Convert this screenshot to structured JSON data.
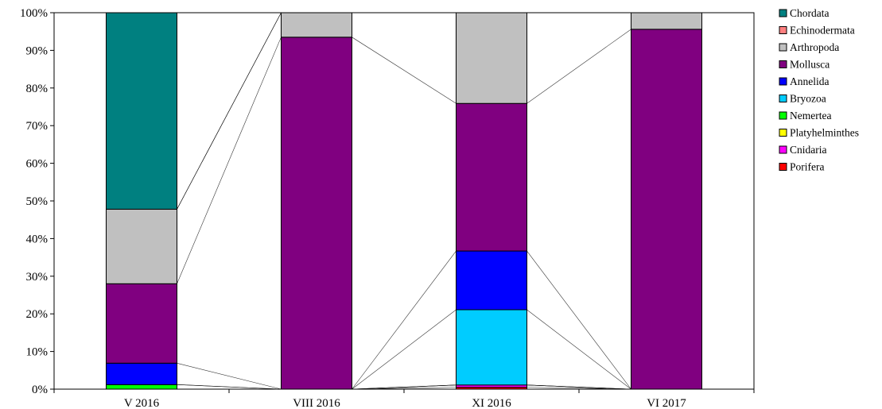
{
  "chart_data": {
    "type": "bar",
    "stacked": true,
    "percent": true,
    "categories": [
      "V 2016",
      "VIII 2016",
      "XI 2016",
      "VI 2017"
    ],
    "series": [
      {
        "name": "Porifera",
        "color": "#ff0000",
        "values": [
          0.0,
          0.0,
          0.5,
          0.0
        ]
      },
      {
        "name": "Cnidaria",
        "color": "#ff00ff",
        "values": [
          0.0,
          0.0,
          0.6,
          0.0
        ]
      },
      {
        "name": "Platyhelminthes",
        "color": "#ffff00",
        "values": [
          0.0,
          0.0,
          0.0,
          0.0
        ]
      },
      {
        "name": "Nemertea",
        "color": "#00ff00",
        "values": [
          1.2,
          0.0,
          0.0,
          0.0
        ]
      },
      {
        "name": "Bryozoa",
        "color": "#00ccff",
        "values": [
          0.0,
          0.0,
          20.0,
          0.0
        ]
      },
      {
        "name": "Annelida",
        "color": "#0000ff",
        "values": [
          5.7,
          0.0,
          15.6,
          0.0
        ]
      },
      {
        "name": "Mollusca",
        "color": "#800080",
        "values": [
          21.1,
          93.5,
          39.2,
          95.6
        ]
      },
      {
        "name": "Arthropoda",
        "color": "#c0c0c0",
        "values": [
          19.8,
          6.5,
          24.1,
          4.4
        ]
      },
      {
        "name": "Echinodermata",
        "color": "#ff8080",
        "values": [
          0.0,
          0.0,
          0.0,
          0.0
        ]
      },
      {
        "name": "Chordata",
        "color": "#008080",
        "values": [
          52.2,
          0.0,
          0.0,
          0.0
        ]
      }
    ],
    "ylim": [
      0,
      100
    ],
    "yticks": [
      "0%",
      "10%",
      "20%",
      "30%",
      "40%",
      "50%",
      "60%",
      "70%",
      "80%",
      "90%",
      "100%"
    ],
    "grid": false,
    "legend_position": "right",
    "series_lines": true,
    "title": "",
    "xlabel": "",
    "ylabel": ""
  }
}
